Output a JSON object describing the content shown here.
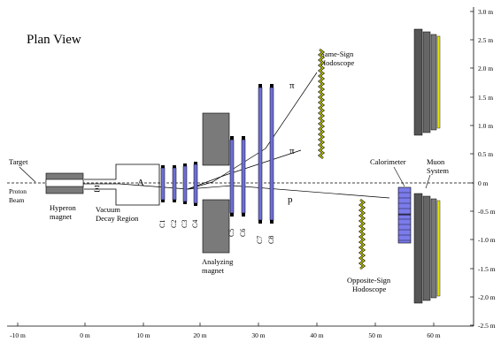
{
  "title": "Plan View",
  "labels": {
    "target": "Target",
    "proton_beam": [
      "Proton",
      "Beam"
    ],
    "hyperon_magnet": [
      "Hyperon",
      "magnet"
    ],
    "vacuum_decay": [
      "Vacuum",
      "Decay Region"
    ],
    "analyzing_magnet": [
      "Analyzing",
      "magnet"
    ],
    "same_sign": [
      "Same-Sign",
      "Hodoscope"
    ],
    "opposite_sign": [
      "Opposite-Sign",
      "Hodoscope"
    ],
    "calorimeter": "Calorimeter",
    "muon_system": [
      "Muon",
      "System"
    ],
    "xi": "Ξ",
    "lambda": "Λ",
    "pi_upper": "π",
    "pi_lower": "π",
    "proton": "p"
  },
  "chambers": [
    "C1",
    "C2",
    "C3",
    "C4",
    "C5",
    "C6",
    "C7",
    "C8"
  ],
  "x_axis": {
    "unit": "m",
    "ticks": [
      "-10 m",
      "0 m",
      "10 m",
      "20 m",
      "30 m",
      "40 m",
      "50 m",
      "60 m"
    ]
  },
  "y_axis": {
    "unit": "m",
    "ticks": [
      "3.0 m",
      "2.5 m",
      "2.0 m",
      "1.5 m",
      "1.0 m",
      "0.5 m",
      "0 m",
      "-0.5 m",
      "-1.0 m",
      "-1.5 m",
      "-2.0 m",
      "-2.5 m"
    ]
  },
  "colors": {
    "magnet": "#7a7a7a",
    "chamber": "#6f6fd6",
    "calorimeter": "#7b7bea",
    "hodoscope": "#c8d000",
    "muon_bar": "#e6e600"
  }
}
